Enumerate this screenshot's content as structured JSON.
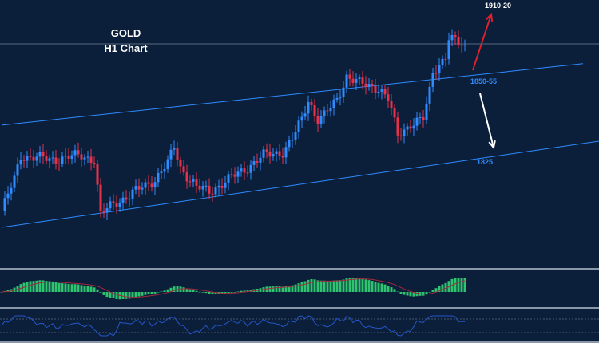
{
  "header": {
    "symbol": "GOLD",
    "timeframe": "H1 Chart"
  },
  "colors": {
    "background": "#0b1f3a",
    "bull": "#2f8bff",
    "bear": "#e8324a",
    "channel": "#2f8bff",
    "hist": "#2fc46f",
    "signal": "#a3283c",
    "oscillator": "#2456c8",
    "separator": "#8a97a8"
  },
  "chart_data": {
    "type": "candlestick",
    "title": "GOLD H1 Chart",
    "ylim": [
      1789.6,
      1877.4
    ],
    "bar_count": 146,
    "price_path": [
      [
        0,
        1808
      ],
      [
        4,
        1818.5
      ],
      [
        6,
        1826.3
      ],
      [
        15,
        1825
      ],
      [
        25,
        1826.3
      ],
      [
        29,
        1825
      ],
      [
        31,
        1806.7
      ],
      [
        35,
        1810.6
      ],
      [
        40,
        1813.2
      ],
      [
        48,
        1818.5
      ],
      [
        52,
        1823.7
      ],
      [
        54,
        1829
      ],
      [
        56,
        1822.4
      ],
      [
        61,
        1815.8
      ],
      [
        65,
        1814.5
      ],
      [
        75,
        1821
      ],
      [
        82,
        1826.3
      ],
      [
        88,
        1827.6
      ],
      [
        91,
        1831.6
      ],
      [
        94,
        1838.1
      ],
      [
        96,
        1844.7
      ],
      [
        99,
        1838.1
      ],
      [
        101,
        1839.4
      ],
      [
        105,
        1844.7
      ],
      [
        108,
        1852.5
      ],
      [
        112,
        1849.9
      ],
      [
        118,
        1848.6
      ],
      [
        121,
        1844.7
      ],
      [
        124,
        1832.9
      ],
      [
        128,
        1836.8
      ],
      [
        132,
        1838.1
      ],
      [
        134,
        1847.3
      ],
      [
        135,
        1853.8
      ],
      [
        139,
        1859.1
      ],
      [
        140,
        1864.8
      ],
      [
        143,
        1863
      ],
      [
        145,
        1861.7
      ]
    ],
    "horizontal_level": 1863,
    "channel_upper": {
      "from": [
        0,
        1836.3
      ],
      "to": [
        182,
        1856.5
      ]
    },
    "channel_lower": {
      "from": [
        0,
        1802.7
      ],
      "to": [
        187,
        1831
      ]
    },
    "annotations": [
      {
        "text": "1910-20",
        "direction": "up",
        "color": "#ffffff"
      },
      {
        "text": "1850-55",
        "color": "#2f8bff"
      },
      {
        "text": "1825",
        "color": "#2f8bff"
      }
    ],
    "indicators": [
      "MACD histogram with signal line",
      "Oscillator line with upper/lower dotted levels"
    ]
  }
}
